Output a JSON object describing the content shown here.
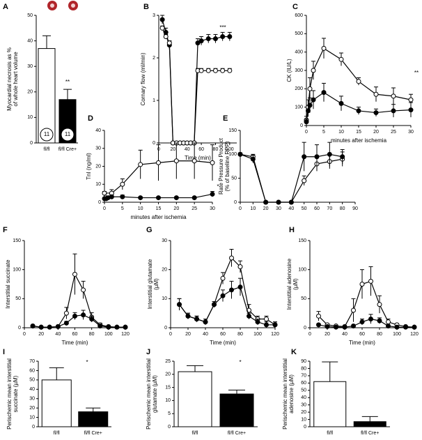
{
  "chart_data": [
    {
      "type": "bar",
      "label": "A",
      "ylabel": [
        "Myocardial necrosis as %",
        "of whole heart volume"
      ],
      "categories": [
        "fl/fl",
        "fl/fl Cre+"
      ],
      "values": [
        37,
        17
      ],
      "errors": [
        5,
        4
      ],
      "colors": [
        "#ffffff",
        "#000000"
      ],
      "ylim": [
        0,
        50
      ],
      "yticks": [
        0,
        10,
        20,
        30,
        40,
        50
      ],
      "annotation": "**",
      "n_labels": [
        "11",
        "11"
      ]
    },
    {
      "type": "line",
      "label": "B",
      "ylabel": [
        "Cornary flow (ml/min)"
      ],
      "xlabel": "Time (min)",
      "x": [
        5,
        10,
        15,
        20,
        25,
        30,
        35,
        40,
        45,
        50,
        55,
        60,
        70,
        80,
        90,
        100
      ],
      "series": [
        {
          "color": "#000000",
          "marker_fill": "#000000",
          "values": [
            2.9,
            2.6,
            2.3,
            0,
            0,
            0,
            0,
            0,
            0,
            0,
            2.35,
            2.4,
            2.45,
            2.45,
            2.5,
            2.5
          ],
          "errors": [
            0.1,
            0.1,
            0.1,
            0,
            0,
            0,
            0,
            0,
            0,
            0,
            0.1,
            0.1,
            0.1,
            0.1,
            0.1,
            0.1
          ]
        },
        {
          "color": "#000000",
          "marker_fill": "#ffffff",
          "values": [
            2.7,
            2.5,
            2.35,
            0,
            0,
            0,
            0,
            0,
            0,
            0,
            1.7,
            1.7,
            1.7,
            1.7,
            1.7,
            1.7
          ],
          "errors": [
            0.05,
            0.05,
            0.05,
            0,
            0,
            0,
            0,
            0,
            0,
            0,
            0.05,
            0.05,
            0.05,
            0.05,
            0.05,
            0.05
          ]
        }
      ],
      "xlim": [
        0,
        110
      ],
      "xticks": [
        0,
        20,
        40,
        60,
        80,
        100
      ],
      "ylim": [
        0,
        3
      ],
      "yticks": [
        0,
        1,
        2,
        3
      ],
      "annotation": "***"
    },
    {
      "type": "line",
      "label": "C",
      "ylabel": [
        "CK (IU/L)"
      ],
      "xlabel": "minutes after ischemia",
      "x": [
        0,
        0.5,
        1,
        2,
        5,
        10,
        15,
        20,
        25,
        30
      ],
      "series": [
        {
          "color": "#000000",
          "marker_fill": "#ffffff",
          "values": [
            30,
            100,
            200,
            300,
            420,
            360,
            240,
            170,
            160,
            140
          ],
          "errors": [
            20,
            40,
            60,
            50,
            55,
            35,
            20,
            40,
            45,
            30
          ]
        },
        {
          "color": "#000000",
          "marker_fill": "#000000",
          "values": [
            20,
            80,
            110,
            140,
            180,
            120,
            80,
            70,
            80,
            85
          ],
          "errors": [
            15,
            30,
            40,
            50,
            50,
            40,
            20,
            20,
            35,
            40
          ]
        }
      ],
      "xlim": [
        0,
        30
      ],
      "xticks": [
        0,
        5,
        10,
        15,
        20,
        25,
        30
      ],
      "ylim": [
        0,
        600
      ],
      "yticks": [
        0,
        100,
        200,
        300,
        400,
        500,
        600
      ],
      "annotation": "**"
    },
    {
      "type": "line",
      "label": "D",
      "ylabel": [
        "TnI (ng/ml)"
      ],
      "xlabel": "minutes after ischemia",
      "x": [
        0,
        0.5,
        1,
        2,
        5,
        10,
        15,
        20,
        25,
        30
      ],
      "series": [
        {
          "color": "#000000",
          "marker_fill": "#ffffff",
          "values": [
            5,
            3,
            4,
            5,
            10,
            21,
            22,
            23,
            23,
            22
          ],
          "errors": [
            1,
            1,
            1,
            2,
            3,
            8,
            10,
            10,
            10,
            10
          ]
        },
        {
          "color": "#000000",
          "marker_fill": "#000000",
          "values": [
            2,
            2,
            2.5,
            3,
            3,
            2.5,
            2.5,
            2.5,
            2.5,
            4.5
          ],
          "errors": [
            0.5,
            0.5,
            0.5,
            1,
            1,
            0.5,
            0.5,
            0.5,
            0.5,
            1.5
          ]
        }
      ],
      "xlim": [
        0,
        30
      ],
      "xticks": [
        0,
        5,
        10,
        15,
        20,
        25,
        30
      ],
      "ylim": [
        0,
        40
      ],
      "yticks": [
        0,
        10,
        20,
        30,
        40
      ],
      "annotation": "*"
    },
    {
      "type": "line",
      "label": "E",
      "ylabel": [
        "Rate Pressure Product",
        "(% of baseline RPP)"
      ],
      "x": [
        0,
        10,
        20,
        30,
        40,
        50,
        60,
        70,
        80
      ],
      "series": [
        {
          "color": "#000000",
          "marker_fill": "#ffffff",
          "values": [
            100,
            95,
            0,
            0,
            0,
            45,
            80,
            85,
            90
          ],
          "errors": [
            3,
            5,
            0,
            0,
            0,
            10,
            15,
            15,
            15
          ]
        },
        {
          "color": "#000000",
          "marker_fill": "#000000",
          "values": [
            100,
            90,
            0,
            0,
            0,
            95,
            95,
            100,
            95
          ],
          "errors": [
            3,
            8,
            0,
            0,
            0,
            30,
            25,
            25,
            15
          ]
        }
      ],
      "xlim": [
        0,
        90
      ],
      "xticks": [
        0,
        10,
        20,
        30,
        40,
        50,
        60,
        70,
        80,
        90
      ],
      "ylim": [
        0,
        150
      ],
      "yticks": [
        0,
        50,
        100,
        150
      ]
    },
    {
      "type": "line",
      "label": "F",
      "ylabel": [
        "Interstitial succinate"
      ],
      "xlabel": "Time (min)",
      "x": [
        10,
        20,
        30,
        40,
        50,
        60,
        70,
        80,
        90,
        100,
        110,
        120
      ],
      "series": [
        {
          "color": "#000000",
          "marker_fill": "#ffffff",
          "values": [
            3,
            1,
            1,
            2,
            25,
            92,
            65,
            18,
            5,
            2,
            1,
            1
          ],
          "errors": [
            1,
            1,
            1,
            1,
            10,
            35,
            15,
            8,
            3,
            1,
            1,
            1
          ]
        },
        {
          "color": "#000000",
          "marker_fill": "#000000",
          "values": [
            3,
            1,
            1,
            2,
            8,
            20,
            22,
            15,
            3,
            1,
            1,
            1
          ],
          "errors": [
            1,
            1,
            1,
            1,
            3,
            6,
            8,
            5,
            2,
            1,
            1,
            1
          ]
        }
      ],
      "xlim": [
        0,
        120
      ],
      "xticks": [
        0,
        20,
        40,
        60,
        80,
        100,
        120
      ],
      "ylim": [
        0,
        150
      ],
      "yticks": [
        0,
        50,
        100,
        150
      ]
    },
    {
      "type": "line",
      "label": "G",
      "ylabel": [
        "Interstitial glutamate",
        "(µM)"
      ],
      "xlabel": "Time (min)",
      "x": [
        10,
        20,
        30,
        40,
        50,
        60,
        70,
        80,
        90,
        100,
        110,
        120
      ],
      "series": [
        {
          "color": "#000000",
          "marker_fill": "#ffffff",
          "values": [
            8,
            4,
            3,
            2,
            8,
            17,
            24,
            21,
            6,
            3,
            3,
            1
          ],
          "errors": [
            2,
            1,
            1,
            1,
            1,
            2,
            3,
            2,
            2,
            1,
            1,
            1
          ]
        },
        {
          "color": "#000000",
          "marker_fill": "#000000",
          "values": [
            8,
            4,
            3,
            2,
            8,
            11,
            13,
            14,
            4,
            2,
            1,
            1
          ],
          "errors": [
            2,
            1,
            1,
            1,
            1,
            2,
            3,
            3,
            1,
            1,
            1,
            1
          ]
        }
      ],
      "xlim": [
        0,
        120
      ],
      "xticks": [
        0,
        20,
        40,
        60,
        80,
        100,
        120
      ],
      "ylim": [
        0,
        30
      ],
      "yticks": [
        0,
        10,
        20,
        30
      ]
    },
    {
      "type": "line",
      "label": "H",
      "ylabel": [
        "Interstitial adenosine",
        "(µM)"
      ],
      "xlabel": "Time (min)",
      "x": [
        10,
        20,
        30,
        40,
        50,
        60,
        70,
        80,
        90,
        100,
        110,
        120
      ],
      "series": [
        {
          "color": "#000000",
          "marker_fill": "#ffffff",
          "values": [
            20,
            5,
            3,
            2,
            30,
            75,
            80,
            40,
            10,
            5,
            2,
            1
          ],
          "errors": [
            8,
            2,
            1,
            1,
            20,
            25,
            25,
            15,
            5,
            2,
            1,
            1
          ]
        },
        {
          "color": "#000000",
          "marker_fill": "#000000",
          "values": [
            5,
            2,
            1,
            1,
            3,
            10,
            15,
            12,
            3,
            1,
            1,
            1
          ],
          "errors": [
            2,
            1,
            1,
            1,
            2,
            5,
            8,
            5,
            2,
            1,
            1,
            1
          ]
        }
      ],
      "xlim": [
        0,
        120
      ],
      "xticks": [
        0,
        20,
        40,
        60,
        80,
        100,
        120
      ],
      "ylim": [
        0,
        150
      ],
      "yticks": [
        0,
        50,
        100,
        150
      ]
    },
    {
      "type": "bar",
      "label": "I",
      "ylabel": [
        "Perischemic mean interstitial",
        "succinate (µM)"
      ],
      "categories": [
        "fl/fl",
        "fl/fl Cre+"
      ],
      "values": [
        50,
        16
      ],
      "errors": [
        13,
        4
      ],
      "colors": [
        "#ffffff",
        "#000000"
      ],
      "ylim": [
        0,
        70
      ],
      "yticks": [
        0,
        10,
        20,
        30,
        40,
        50,
        60,
        70
      ],
      "annotation": "*"
    },
    {
      "type": "bar",
      "label": "J",
      "ylabel": [
        "Perischemic mean interstitial",
        "glutamate (µM)"
      ],
      "categories": [
        "fl/fl",
        "fl/fl Cre+"
      ],
      "values": [
        21,
        12.5
      ],
      "errors": [
        2.3,
        1.5
      ],
      "colors": [
        "#ffffff",
        "#000000"
      ],
      "ylim": [
        0,
        25
      ],
      "yticks": [
        0,
        5,
        10,
        15,
        20,
        25
      ],
      "annotation": "*"
    },
    {
      "type": "bar",
      "label": "K",
      "ylabel": [
        "Perischemic mean interstitial",
        "adenosine (µM)"
      ],
      "categories": [
        "fl/fl",
        "fl/fl Cre+"
      ],
      "values": [
        62,
        7
      ],
      "errors": [
        27,
        7
      ],
      "colors": [
        "#ffffff",
        "#000000"
      ],
      "ylim": [
        0,
        90
      ],
      "yticks": [
        0,
        10,
        20,
        30,
        40,
        50,
        60,
        70,
        80,
        90
      ]
    }
  ]
}
